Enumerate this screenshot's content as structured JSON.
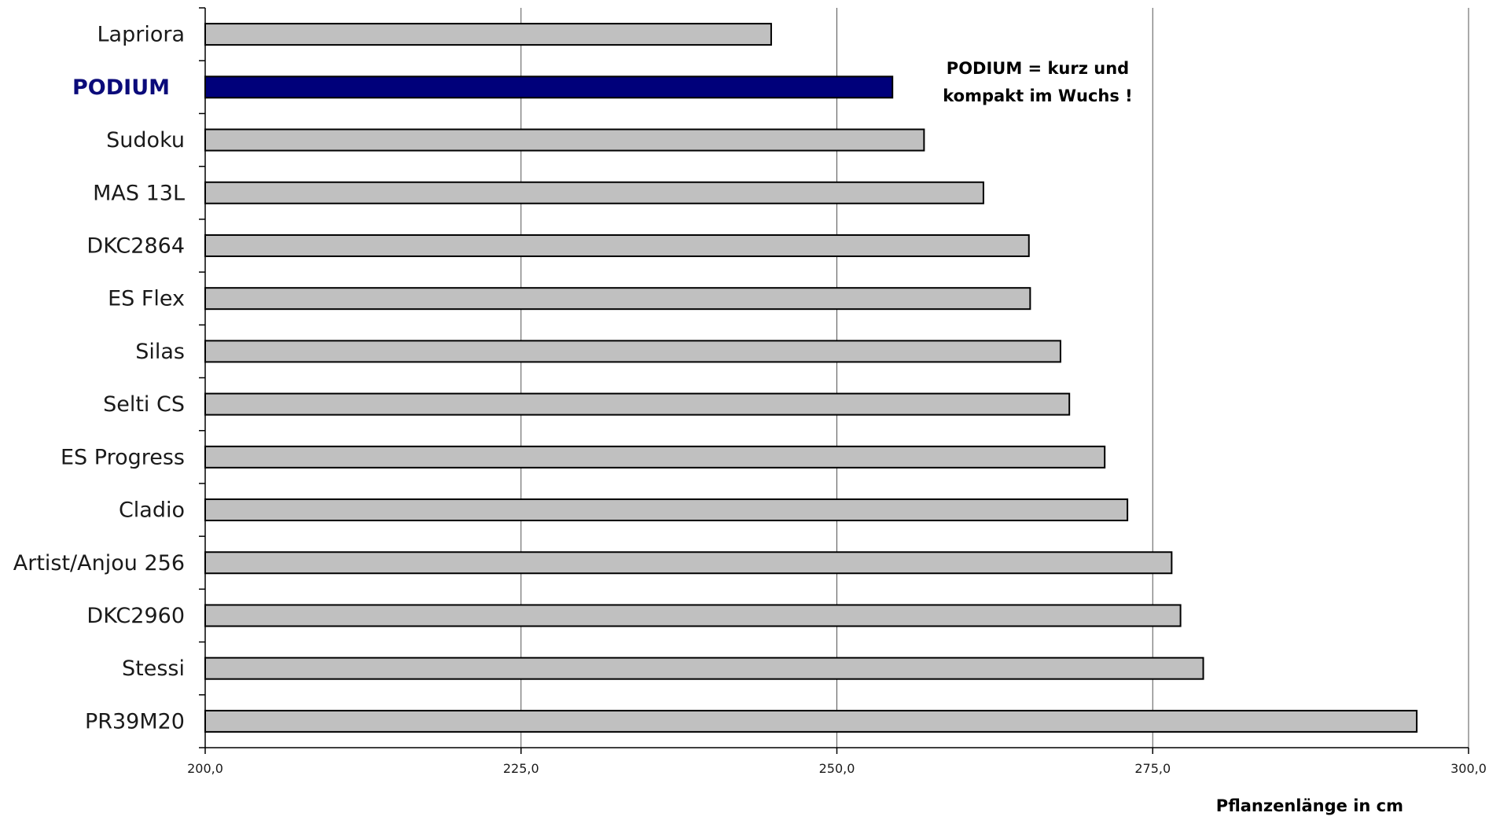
{
  "chart_data": {
    "type": "bar",
    "orientation": "horizontal",
    "categories": [
      "Lapriora",
      "PODIUM",
      "Sudoku",
      "MAS 13L",
      "DKC2864",
      "ES Flex",
      "Silas",
      "Selti CS",
      "ES Progress",
      "Cladio",
      "Artist/Anjou 256",
      "DKC2960",
      "Stessi",
      "PR39M20"
    ],
    "values": [
      244.8,
      254.4,
      256.9,
      261.6,
      265.2,
      265.3,
      267.7,
      268.4,
      271.2,
      273.0,
      276.5,
      277.2,
      279.0,
      295.9
    ],
    "highlight": "PODIUM",
    "xlabel": "Pflanzenlänge in cm",
    "ylabel": "",
    "xlim": [
      200,
      300
    ],
    "xticks": [
      200,
      225,
      250,
      275,
      300
    ],
    "xtick_labels": [
      "200,0",
      "225,0",
      "250,0",
      "275,0",
      "300,0"
    ],
    "annotation": [
      "PODIUM = kurz und",
      "kompakt im Wuchs !"
    ],
    "footnote": "",
    "grid": "vertical",
    "legend": "none",
    "colors": {
      "bar": "#c0c0c0",
      "bar_highlight": "#00007a",
      "bar_edge": "#000000",
      "label_highlight": "#0b0b7a",
      "grid": "#555555"
    }
  }
}
